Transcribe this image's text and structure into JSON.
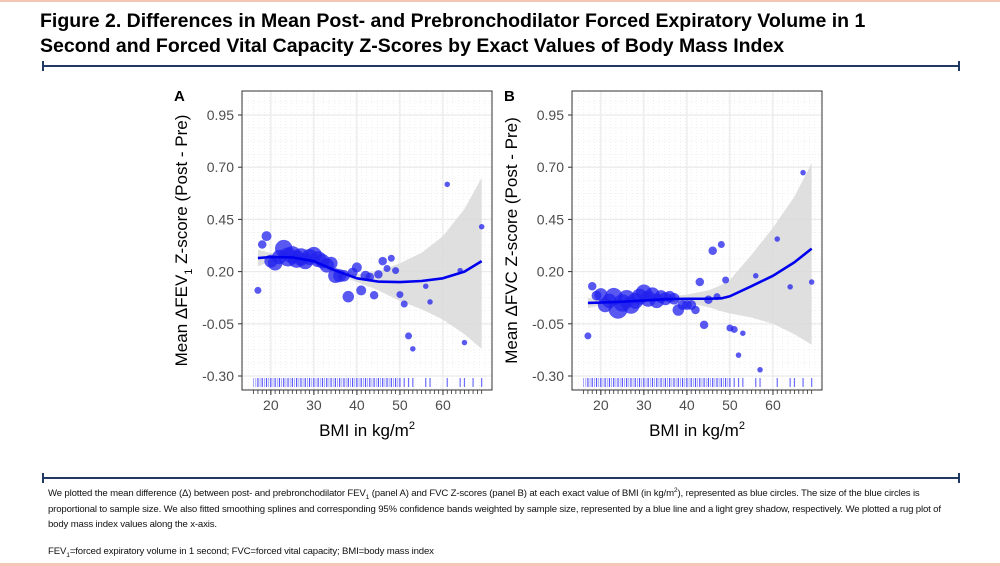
{
  "figure": {
    "title_line1": "Figure 2. Differences in Mean Post- and Prebronchodilator Forced Expiratory Volume in 1",
    "title_line2": "Second and Forced Vital Capacity Z-Scores by Exact Values of Body Mass Index",
    "caption": {
      "p1": "We plotted the mean difference (Δ) between post- and prebronchodilator FEV",
      "p1_sub": "1",
      "p2": " (panel A) and FVC Z-scores (panel B) at each exact value of BMI (in kg/m",
      "p2_sup": "2",
      "p3": "), represented as blue circles. The size of the blue circles is proportional to sample size. We also fitted smoothing splines and corresponding 95% confidence bands weighted by sample size, represented by a blue line and a light grey shadow, respectively. We plotted a rug plot of body mass index values along the x-axis."
    },
    "abbreviations": {
      "a1": "FEV",
      "a1_sub": "1",
      "a2": "=forced expiratory volume in 1 second; FVC=forced vital capacity; BMI=body mass index"
    },
    "colors": {
      "points": "#2222ee",
      "line": "#0000ee",
      "band": "#d9d9d9",
      "rule": "#1f3864",
      "accent": "#f4c7b4"
    }
  },
  "chart_data": [
    {
      "type": "scatter",
      "panel_label": "A",
      "ylabel_pre": "Mean ΔFEV",
      "ylabel_sub": "1",
      "ylabel_post": " Z-score (Post - Pre)",
      "xlabel_pre": "BMI in kg/m",
      "xlabel_sup": "2",
      "xticks": [
        20,
        30,
        40,
        50,
        60
      ],
      "yticks": [
        "-0.30",
        "-0.05",
        "0.20",
        "0.45",
        "0.70",
        "0.95"
      ],
      "xlim": [
        13.3,
        71.4
      ],
      "ylim": [
        -0.367,
        1.065
      ],
      "grid": true,
      "points": [
        [
          17,
          0.11,
          2
        ],
        [
          18,
          0.33,
          3
        ],
        [
          19,
          0.37,
          4
        ],
        [
          20,
          0.25,
          6
        ],
        [
          21,
          0.24,
          7
        ],
        [
          22,
          0.27,
          7
        ],
        [
          23,
          0.31,
          9
        ],
        [
          24,
          0.27,
          10
        ],
        [
          25,
          0.28,
          9
        ],
        [
          26,
          0.26,
          9
        ],
        [
          27,
          0.27,
          9
        ],
        [
          28,
          0.25,
          8
        ],
        [
          29,
          0.27,
          8
        ],
        [
          30,
          0.28,
          8
        ],
        [
          31,
          0.26,
          8
        ],
        [
          32,
          0.25,
          7
        ],
        [
          33,
          0.23,
          7
        ],
        [
          34,
          0.24,
          6
        ],
        [
          35,
          0.18,
          7
        ],
        [
          36,
          0.18,
          6
        ],
        [
          37,
          0.18,
          5
        ],
        [
          38,
          0.08,
          5
        ],
        [
          39,
          0.195,
          4
        ],
        [
          40,
          0.22,
          4
        ],
        [
          41,
          0.11,
          4
        ],
        [
          42,
          0.18,
          4
        ],
        [
          43,
          0.175,
          3
        ],
        [
          44,
          0.087,
          3
        ],
        [
          45,
          0.187,
          3
        ],
        [
          46,
          0.25,
          3
        ],
        [
          47,
          0.215,
          2
        ],
        [
          48,
          0.264,
          2
        ],
        [
          49,
          0.205,
          2
        ],
        [
          50,
          0.09,
          2
        ],
        [
          51,
          0.045,
          2
        ],
        [
          52,
          -0.108,
          2
        ],
        [
          53,
          -0.17,
          1
        ],
        [
          56,
          0.13,
          1
        ],
        [
          57,
          0.055,
          1
        ],
        [
          61,
          0.618,
          1
        ],
        [
          64,
          0.205,
          1
        ],
        [
          65,
          -0.14,
          1
        ],
        [
          69,
          0.415,
          1
        ]
      ],
      "spline": [
        [
          17,
          0.265
        ],
        [
          20,
          0.27
        ],
        [
          25,
          0.268
        ],
        [
          30,
          0.25
        ],
        [
          35,
          0.205
        ],
        [
          40,
          0.168
        ],
        [
          45,
          0.152
        ],
        [
          50,
          0.15
        ],
        [
          55,
          0.155
        ],
        [
          60,
          0.168
        ],
        [
          65,
          0.2
        ],
        [
          69,
          0.25
        ]
      ],
      "band_lower": [
        [
          17,
          0.225
        ],
        [
          20,
          0.25
        ],
        [
          25,
          0.255
        ],
        [
          30,
          0.24
        ],
        [
          35,
          0.19
        ],
        [
          40,
          0.15
        ],
        [
          45,
          0.11
        ],
        [
          50,
          0.06
        ],
        [
          55,
          0.02
        ],
        [
          60,
          -0.03
        ],
        [
          65,
          -0.1
        ],
        [
          69,
          -0.17
        ]
      ],
      "band_upper": [
        [
          17,
          0.305
        ],
        [
          20,
          0.29
        ],
        [
          25,
          0.28
        ],
        [
          30,
          0.262
        ],
        [
          35,
          0.22
        ],
        [
          40,
          0.186
        ],
        [
          45,
          0.2
        ],
        [
          50,
          0.24
        ],
        [
          55,
          0.29
        ],
        [
          60,
          0.37
        ],
        [
          65,
          0.5
        ],
        [
          69,
          0.65
        ]
      ],
      "rug": [
        17,
        18,
        19,
        20,
        21,
        22,
        23,
        24,
        25,
        26,
        27,
        28,
        29,
        30,
        31,
        32,
        33,
        34,
        35,
        36,
        37,
        38,
        39,
        40,
        41,
        42,
        43,
        44,
        45,
        46,
        47,
        48,
        49,
        50,
        51,
        52,
        53,
        56,
        57,
        61,
        64,
        65,
        67,
        69
      ]
    },
    {
      "type": "scatter",
      "panel_label": "B",
      "ylabel_pre": "Mean ΔFVC Z-score (Post - Pre)",
      "ylabel_sub": "",
      "ylabel_post": "",
      "xlabel_pre": "BMI in kg/m",
      "xlabel_sup": "2",
      "xticks": [
        20,
        30,
        40,
        50,
        60
      ],
      "yticks": [
        "-0.30",
        "-0.05",
        "0.20",
        "0.45",
        "0.70",
        "0.95"
      ],
      "xlim": [
        13.3,
        71.4
      ],
      "ylim": [
        -0.367,
        1.065
      ],
      "grid": true,
      "points": [
        [
          17,
          -0.108,
          2
        ],
        [
          18,
          0.13,
          3
        ],
        [
          19,
          0.085,
          4
        ],
        [
          20,
          0.09,
          6
        ],
        [
          21,
          0.04,
          7
        ],
        [
          22,
          0.06,
          7
        ],
        [
          23,
          0.08,
          9
        ],
        [
          24,
          0.02,
          10
        ],
        [
          25,
          0.05,
          9
        ],
        [
          26,
          0.07,
          9
        ],
        [
          27,
          0.04,
          9
        ],
        [
          28,
          0.06,
          8
        ],
        [
          29,
          0.08,
          8
        ],
        [
          30,
          0.1,
          8
        ],
        [
          31,
          0.07,
          8
        ],
        [
          32,
          0.09,
          7
        ],
        [
          33,
          0.06,
          7
        ],
        [
          34,
          0.08,
          6
        ],
        [
          35,
          0.07,
          6
        ],
        [
          36,
          0.08,
          5
        ],
        [
          37,
          0.07,
          5
        ],
        [
          38,
          0.016,
          5
        ],
        [
          39,
          0.04,
          4
        ],
        [
          40,
          0.04,
          4
        ],
        [
          41,
          0.04,
          4
        ],
        [
          42,
          0.016,
          3
        ],
        [
          43,
          0.15,
          3
        ],
        [
          44,
          -0.055,
          3
        ],
        [
          45,
          0.065,
          3
        ],
        [
          46,
          0.3,
          3
        ],
        [
          47,
          0.08,
          2
        ],
        [
          48,
          0.33,
          2
        ],
        [
          49,
          0.16,
          2
        ],
        [
          50,
          -0.07,
          2
        ],
        [
          51,
          -0.077,
          2
        ],
        [
          52,
          -0.2,
          1
        ],
        [
          53,
          -0.095,
          1
        ],
        [
          56,
          0.18,
          1
        ],
        [
          57,
          -0.27,
          1
        ],
        [
          61,
          0.356,
          1
        ],
        [
          64,
          0.127,
          1
        ],
        [
          67,
          0.674,
          1
        ],
        [
          69,
          0.15,
          1
        ]
      ],
      "spline": [
        [
          17,
          0.05
        ],
        [
          20,
          0.052
        ],
        [
          25,
          0.056
        ],
        [
          30,
          0.062
        ],
        [
          35,
          0.068
        ],
        [
          40,
          0.07
        ],
        [
          45,
          0.07
        ],
        [
          48,
          0.072
        ],
        [
          50,
          0.082
        ],
        [
          55,
          0.13
        ],
        [
          60,
          0.18
        ],
        [
          65,
          0.245
        ],
        [
          69,
          0.31
        ]
      ],
      "band_lower": [
        [
          17,
          0.025
        ],
        [
          20,
          0.038
        ],
        [
          25,
          0.048
        ],
        [
          30,
          0.054
        ],
        [
          35,
          0.058
        ],
        [
          40,
          0.052
        ],
        [
          45,
          0.03
        ],
        [
          48,
          0.01
        ],
        [
          50,
          0.0
        ],
        [
          55,
          -0.02
        ],
        [
          60,
          -0.05
        ],
        [
          65,
          -0.1
        ],
        [
          69,
          -0.15
        ]
      ],
      "band_upper": [
        [
          17,
          0.075
        ],
        [
          20,
          0.066
        ],
        [
          25,
          0.064
        ],
        [
          30,
          0.07
        ],
        [
          35,
          0.078
        ],
        [
          40,
          0.09
        ],
        [
          45,
          0.11
        ],
        [
          48,
          0.135
        ],
        [
          50,
          0.16
        ],
        [
          55,
          0.28
        ],
        [
          60,
          0.41
        ],
        [
          65,
          0.56
        ],
        [
          69,
          0.72
        ]
      ],
      "rug": [
        17,
        18,
        19,
        20,
        21,
        22,
        23,
        24,
        25,
        26,
        27,
        28,
        29,
        30,
        31,
        32,
        33,
        34,
        35,
        36,
        37,
        38,
        39,
        40,
        41,
        42,
        43,
        44,
        45,
        46,
        47,
        48,
        49,
        50,
        51,
        52,
        53,
        56,
        57,
        61,
        64,
        65,
        67,
        69
      ]
    }
  ]
}
